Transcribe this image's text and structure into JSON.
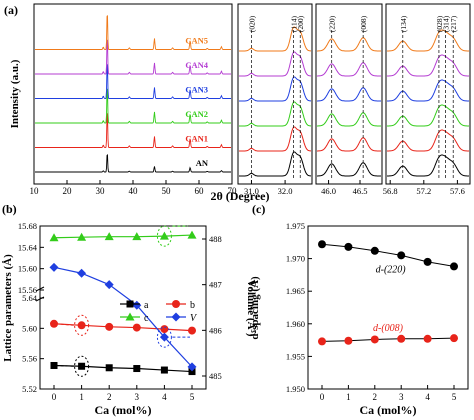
{
  "panels": {
    "a": "(a)",
    "b": "(b)",
    "c": "(c)"
  },
  "colors": {
    "AN": "#000000",
    "CAN1": "#e8241a",
    "CAN2": "#33cc1a",
    "CAN3": "#1f3fe0",
    "CAN4": "#b43cd2",
    "CAN5": "#f07a1a",
    "series_a": "#000000",
    "series_b": "#e8241a",
    "series_c": "#33cc1a",
    "series_V": "#1f3fe0"
  },
  "chart_data": [
    {
      "type": "line",
      "panel": "a-main",
      "ylabel": "Intensity (a.u.)",
      "xlabel": "2θ (Degree)",
      "xlim": [
        10,
        70
      ],
      "xticks": [
        "10",
        "20",
        "30",
        "40",
        "50",
        "60",
        "70"
      ],
      "peaks_2theta": [
        30.9,
        32.4,
        32.7,
        46.4,
        46.8,
        56.9,
        57.4,
        57.5
      ],
      "series": [
        {
          "name": "AN"
        },
        {
          "name": "CAN1"
        },
        {
          "name": "CAN2"
        },
        {
          "name": "CAN3"
        },
        {
          "name": "CAN4"
        },
        {
          "name": "CAN5"
        }
      ]
    },
    {
      "type": "line",
      "panel": "a-zoom-1",
      "xlim": [
        30.6,
        32.8
      ],
      "xticks": [
        "31.0",
        "32.0"
      ],
      "peak_labels": [
        "(020)",
        "(114)",
        "(200)"
      ]
    },
    {
      "type": "line",
      "panel": "a-zoom-2",
      "xlim": [
        45.8,
        46.85
      ],
      "xticks": [
        "46.0",
        "46.5"
      ],
      "peak_labels": [
        "(220)",
        "(008)"
      ]
    },
    {
      "type": "line",
      "panel": "a-zoom-3",
      "xlim": [
        56.75,
        57.75
      ],
      "xticks": [
        "56.8",
        "57.2",
        "57.6"
      ],
      "peak_labels": [
        "(134)",
        "(028)",
        "(314)",
        "(217)"
      ]
    },
    {
      "type": "line",
      "panel": "b",
      "xlabel": "Ca (mol%)",
      "ylabel": "Lattice parameters (Å)",
      "y2label": "Volume (Å³)",
      "x": [
        0,
        1,
        2,
        3,
        4,
        5
      ],
      "xticks": [
        "0",
        "1",
        "2",
        "3",
        "4",
        "5"
      ],
      "ylim_lower": [
        5.52,
        5.64
      ],
      "ylim_upper": [
        15.56,
        15.68
      ],
      "yticks_lower": [
        "5.52",
        "5.56",
        "5.60",
        "5.64"
      ],
      "yticks_upper": [
        "15.56",
        "15.60",
        "15.64",
        "15.68"
      ],
      "y2lim": [
        485,
        488
      ],
      "y2ticks": [
        "485",
        "486",
        "487",
        "488"
      ],
      "legend": "bottom-right",
      "series": [
        {
          "name": "a",
          "axis": "lower",
          "values": [
            5.551,
            5.55,
            5.548,
            5.547,
            5.545,
            5.543
          ]
        },
        {
          "name": "b",
          "axis": "lower",
          "values": [
            5.606,
            5.604,
            5.602,
            5.601,
            5.599,
            5.597
          ]
        },
        {
          "name": "c",
          "axis": "upper",
          "values": [
            15.658,
            15.659,
            15.66,
            15.66,
            15.661,
            15.663
          ]
        },
        {
          "name": "V",
          "axis": "right",
          "values": [
            487.38,
            487.25,
            487.0,
            486.55,
            485.85,
            485.2
          ]
        }
      ]
    },
    {
      "type": "line",
      "panel": "c",
      "xlabel": "Ca (mol%)",
      "ylabel": "d-spacing (Å)",
      "x": [
        0,
        1,
        2,
        3,
        4,
        5
      ],
      "xticks": [
        "0",
        "1",
        "2",
        "3",
        "4",
        "5"
      ],
      "ylim": [
        1.95,
        1.975
      ],
      "yticks": [
        "1.950",
        "1.955",
        "1.960",
        "1.965",
        "1.970",
        "1.975"
      ],
      "series": [
        {
          "name": "d-(220)",
          "values": [
            1.9722,
            1.9718,
            1.9712,
            1.9705,
            1.9695,
            1.9688
          ]
        },
        {
          "name": "d-(008)",
          "values": [
            1.9573,
            1.9574,
            1.9576,
            1.9577,
            1.9577,
            1.9578
          ]
        }
      ]
    }
  ]
}
